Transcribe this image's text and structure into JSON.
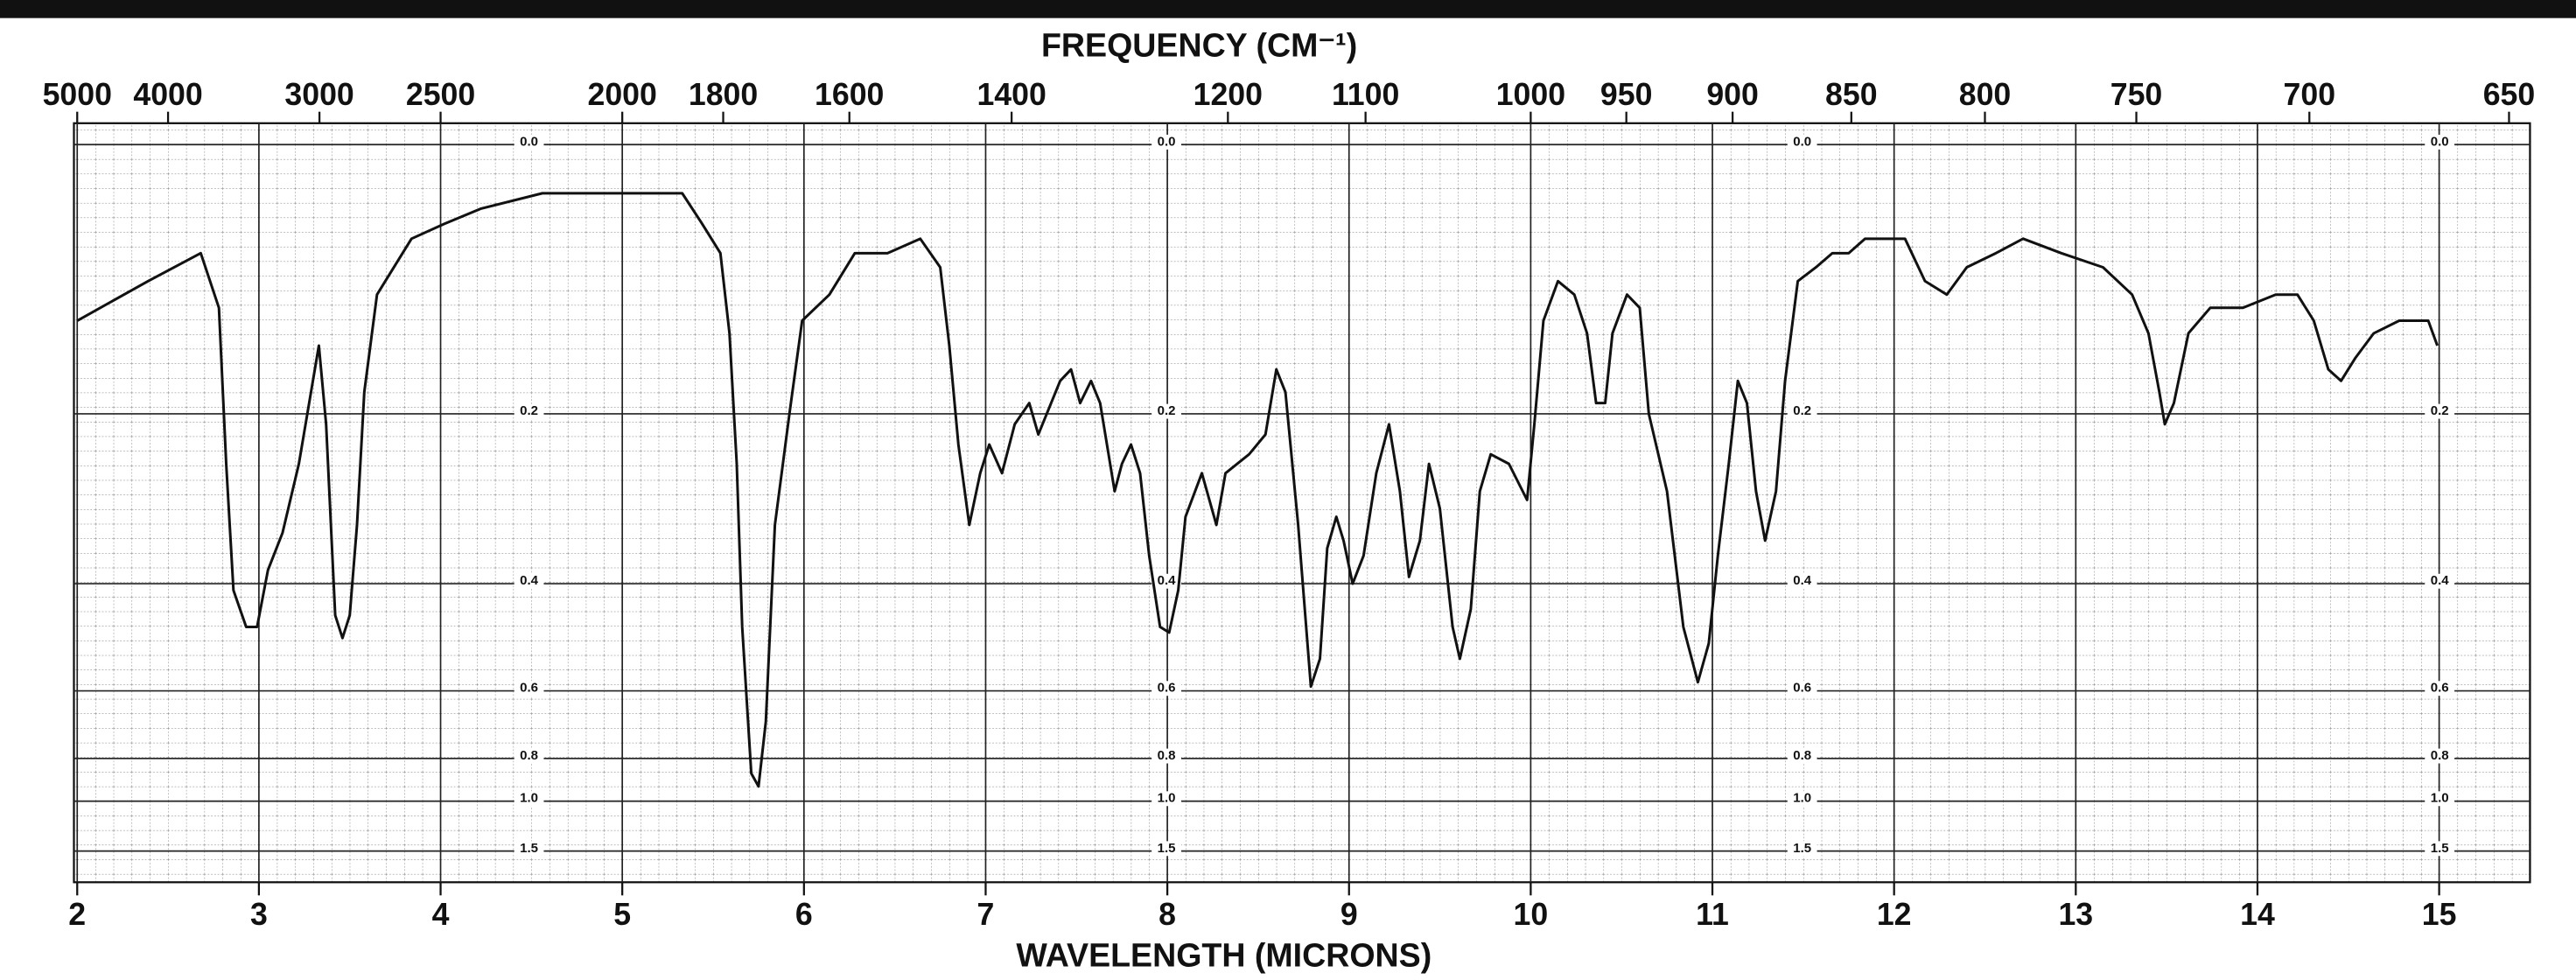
{
  "chart_data": {
    "type": "line",
    "title": "FREQUENCY (CM⁻¹)",
    "x_label": "WAVELENGTH (MICRONS)",
    "color": "#111111",
    "xlim": [
      2,
      15.5
    ],
    "xticks": [
      2,
      3,
      4,
      5,
      6,
      7,
      8,
      9,
      10,
      11,
      12,
      13,
      14,
      15
    ],
    "x2lim": [
      5000,
      645.16
    ],
    "x2scale": "reciprocal",
    "x2ticks": [
      5000,
      4000,
      3000,
      2500,
      2000,
      1800,
      1600,
      1400,
      1200,
      1100,
      1000,
      950,
      900,
      850,
      800,
      750,
      700,
      650
    ],
    "ylim": [
      0,
      1.5
    ],
    "yscale": "absorbance",
    "yticks": [
      {
        "value": 0,
        "label": "0.0"
      },
      0.2,
      0.4,
      0.6,
      0.8,
      {
        "value": 1,
        "label": "1.0"
      },
      1.5
    ],
    "grid": true,
    "x": [
      2.0,
      2.39,
      2.68,
      2.78,
      2.82,
      2.86,
      2.93,
      2.99,
      3.05,
      3.13,
      3.22,
      3.33,
      3.37,
      3.42,
      3.46,
      3.5,
      3.54,
      3.58,
      3.65,
      3.84,
      4.02,
      4.22,
      4.56,
      5.33,
      5.44,
      5.54,
      5.59,
      5.63,
      5.66,
      5.71,
      5.75,
      5.79,
      5.84,
      5.92,
      5.99,
      6.14,
      6.28,
      6.46,
      6.64,
      6.75,
      6.8,
      6.85,
      6.91,
      6.97,
      7.02,
      7.09,
      7.16,
      7.24,
      7.29,
      7.41,
      7.47,
      7.52,
      7.58,
      7.63,
      7.71,
      7.75,
      7.8,
      7.85,
      7.9,
      7.96,
      8.01,
      8.06,
      8.1,
      8.19,
      8.27,
      8.32,
      8.45,
      8.54,
      8.6,
      8.65,
      8.72,
      8.79,
      8.84,
      8.88,
      8.93,
      8.97,
      9.02,
      9.08,
      9.15,
      9.22,
      9.28,
      9.33,
      9.39,
      9.44,
      9.5,
      9.57,
      9.61,
      9.67,
      9.72,
      9.78,
      9.88,
      9.98,
      10.02,
      10.07,
      10.15,
      10.24,
      10.31,
      10.36,
      10.41,
      10.45,
      10.53,
      10.6,
      10.65,
      10.75,
      10.84,
      10.92,
      10.98,
      11.03,
      11.09,
      11.14,
      11.19,
      11.24,
      11.29,
      11.35,
      11.4,
      11.47,
      11.57,
      11.66,
      11.75,
      11.84,
      11.97,
      12.06,
      12.17,
      12.29,
      12.4,
      12.56,
      12.71,
      12.92,
      13.15,
      13.31,
      13.4,
      13.46,
      13.49,
      13.54,
      13.62,
      13.74,
      13.92,
      14.1,
      14.22,
      14.31,
      14.39,
      14.46,
      14.54,
      14.64,
      14.78,
      14.94,
      14.99
    ],
    "values": [
      0.12,
      0.09,
      0.07,
      0.11,
      0.25,
      0.41,
      0.47,
      0.47,
      0.38,
      0.33,
      0.25,
      0.14,
      0.21,
      0.45,
      0.49,
      0.45,
      0.32,
      0.18,
      0.1,
      0.06,
      0.05,
      0.04,
      0.03,
      0.03,
      0.05,
      0.07,
      0.13,
      0.25,
      0.47,
      0.86,
      0.92,
      0.68,
      0.32,
      0.2,
      0.12,
      0.1,
      0.07,
      0.07,
      0.06,
      0.08,
      0.14,
      0.23,
      0.32,
      0.26,
      0.23,
      0.26,
      0.21,
      0.19,
      0.22,
      0.17,
      0.16,
      0.19,
      0.17,
      0.19,
      0.28,
      0.25,
      0.23,
      0.26,
      0.36,
      0.47,
      0.48,
      0.41,
      0.31,
      0.26,
      0.32,
      0.26,
      0.24,
      0.22,
      0.16,
      0.18,
      0.32,
      0.59,
      0.53,
      0.35,
      0.31,
      0.34,
      0.4,
      0.36,
      0.26,
      0.21,
      0.28,
      0.39,
      0.34,
      0.25,
      0.3,
      0.47,
      0.53,
      0.44,
      0.28,
      0.24,
      0.25,
      0.29,
      0.21,
      0.12,
      0.09,
      0.1,
      0.13,
      0.19,
      0.19,
      0.13,
      0.1,
      0.11,
      0.2,
      0.28,
      0.47,
      0.58,
      0.5,
      0.36,
      0.25,
      0.17,
      0.19,
      0.28,
      0.34,
      0.28,
      0.17,
      0.09,
      0.08,
      0.07,
      0.07,
      0.06,
      0.06,
      0.06,
      0.09,
      0.1,
      0.08,
      0.07,
      0.06,
      0.07,
      0.08,
      0.1,
      0.13,
      0.18,
      0.21,
      0.19,
      0.13,
      0.11,
      0.11,
      0.1,
      0.1,
      0.12,
      0.16,
      0.17,
      0.15,
      0.13,
      0.12,
      0.12,
      0.14
    ]
  }
}
